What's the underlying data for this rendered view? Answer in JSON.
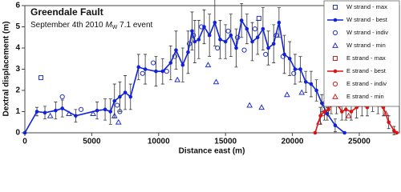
{
  "chart_data": {
    "type": "scatter",
    "title": "Greendale Fault",
    "subtitle": {
      "prefix": "September 4th 2010",
      "symbol": "M",
      "subscript": "W",
      "suffix": "7.1 event"
    },
    "x_label": "Distance east (m)",
    "y_label": "Dextral displacement (m)",
    "xlim": [
      0,
      28000
    ],
    "ylim": [
      0,
      6
    ],
    "xticks": [
      0,
      5000,
      10000,
      15000,
      20000,
      25000
    ],
    "yticks": [
      0,
      1,
      2,
      3,
      4,
      5,
      6
    ],
    "grid": false,
    "legend": "upper right",
    "series": [
      {
        "name": "W strand - max",
        "color": "#2233cc",
        "marker": "square",
        "line": false,
        "x": [
          1200,
          17500
        ],
        "values": [
          2.6,
          5.4
        ]
      },
      {
        "name": "W strand - best",
        "color": "#1122dd",
        "marker": "dot",
        "line": true,
        "x": [
          0,
          900,
          1500,
          2300,
          2800,
          3800,
          5400,
          6000,
          6400,
          6700,
          7100,
          7500,
          7900,
          8500,
          9000,
          9800,
          10300,
          10900,
          11300,
          11800,
          12200,
          12500,
          12700,
          13000,
          13400,
          13800,
          14200,
          14600,
          15000,
          15400,
          15800,
          16200,
          16600,
          17000,
          17400,
          17800,
          18200,
          18600,
          19000,
          19400,
          19800,
          20200,
          20600,
          21000,
          21400,
          21800,
          22200,
          22600,
          23200,
          23900
        ],
        "values": [
          0,
          1.0,
          0.95,
          1.05,
          1.15,
          0.8,
          1.05,
          1.1,
          1.0,
          1.5,
          1.7,
          1.9,
          1.7,
          3.1,
          3.0,
          2.9,
          2.9,
          3.3,
          3.9,
          3.2,
          3.8,
          4.8,
          4.3,
          4.4,
          5.0,
          4.6,
          5.2,
          4.4,
          4.3,
          4.6,
          4.0,
          5.3,
          4.9,
          4.3,
          4.5,
          4.9,
          4.0,
          4.2,
          5.2,
          3.7,
          3.5,
          3.0,
          3.0,
          2.4,
          2.3,
          2.0,
          1.4,
          0.9,
          0.35,
          0
        ],
        "errors": [
          0,
          0.2,
          0.3,
          0.4,
          0.4,
          0.3,
          0.4,
          0.5,
          0.6,
          0.8,
          0.7,
          0.8,
          0.6,
          0.6,
          0.7,
          0.7,
          0.6,
          0.8,
          0.9,
          0.8,
          1.0,
          0.9,
          1.0,
          0.9,
          0.8,
          1.0,
          1.1,
          0.9,
          0.8,
          1.0,
          0.9,
          0.8,
          0.7,
          0.9,
          0.8,
          1.0,
          0.8,
          0.9,
          0.7,
          0.9,
          0.8,
          0.7,
          0.6,
          0.5,
          0.6,
          0.5,
          0.4,
          0.3,
          0.3,
          0
        ]
      },
      {
        "name": "W strand - indiv",
        "color": "#2233cc",
        "marker": "circle",
        "line": false,
        "x": [
          2800,
          4200,
          6900,
          7100,
          8800,
          9600,
          10600,
          11200,
          12300,
          12600,
          13200,
          14400,
          15200,
          15900,
          16400,
          17200,
          18000,
          18800,
          19300,
          20100
        ],
        "values": [
          1.7,
          1.1,
          1.3,
          1.0,
          2.8,
          3.3,
          2.9,
          3.6,
          4.2,
          4.6,
          5.0,
          4.0,
          4.8,
          4.5,
          3.9,
          4.9,
          3.7,
          4.6,
          3.6,
          2.8
        ]
      },
      {
        "name": "W strand - min",
        "color": "#2233cc",
        "marker": "triangle",
        "line": false,
        "x": [
          1900,
          3300,
          5100,
          6700,
          7000,
          11400,
          13700,
          14300,
          16800,
          17700,
          19600,
          20700
        ],
        "values": [
          0.8,
          0.9,
          0.9,
          0.8,
          0.5,
          2.5,
          3.2,
          2.4,
          1.3,
          1.2,
          1.8,
          1.9
        ]
      },
      {
        "name": "E strand - max",
        "color": "#cc2222",
        "marker": "square",
        "line": false,
        "x": [
          22500,
          25300
        ],
        "values": [
          1.4,
          1.6
        ]
      },
      {
        "name": "E strand - best",
        "color": "#dd1111",
        "marker": "dot",
        "line": true,
        "x": [
          21700,
          22100,
          22400,
          22700,
          22900,
          23300,
          23700,
          24000,
          24400,
          24800,
          25200,
          25600,
          26000,
          26400,
          26800,
          27200,
          27600,
          27800
        ],
        "values": [
          0,
          0.8,
          1.0,
          1.1,
          1.3,
          1.4,
          1.0,
          1.1,
          1.0,
          1.2,
          1.3,
          1.2,
          1.6,
          1.3,
          1.2,
          0.5,
          0.1,
          0
        ],
        "errors": [
          0,
          0.4,
          0.4,
          0.3,
          0.4,
          0.5,
          0.4,
          0.5,
          0.4,
          0.5,
          0.5,
          0.4,
          0.6,
          0.4,
          0.4,
          0.3,
          0.2,
          0
        ]
      },
      {
        "name": "E strand - indiv",
        "color": "#cc2222",
        "marker": "circle",
        "line": false,
        "x": [
          22300,
          23500,
          26100
        ],
        "values": [
          0.9,
          1.3,
          1.5
        ]
      },
      {
        "name": "E strand - min",
        "color": "#cc2222",
        "marker": "triangle",
        "line": false,
        "x": [
          22000,
          24200,
          27000
        ],
        "values": [
          0.5,
          0.8,
          0.9
        ]
      }
    ]
  }
}
